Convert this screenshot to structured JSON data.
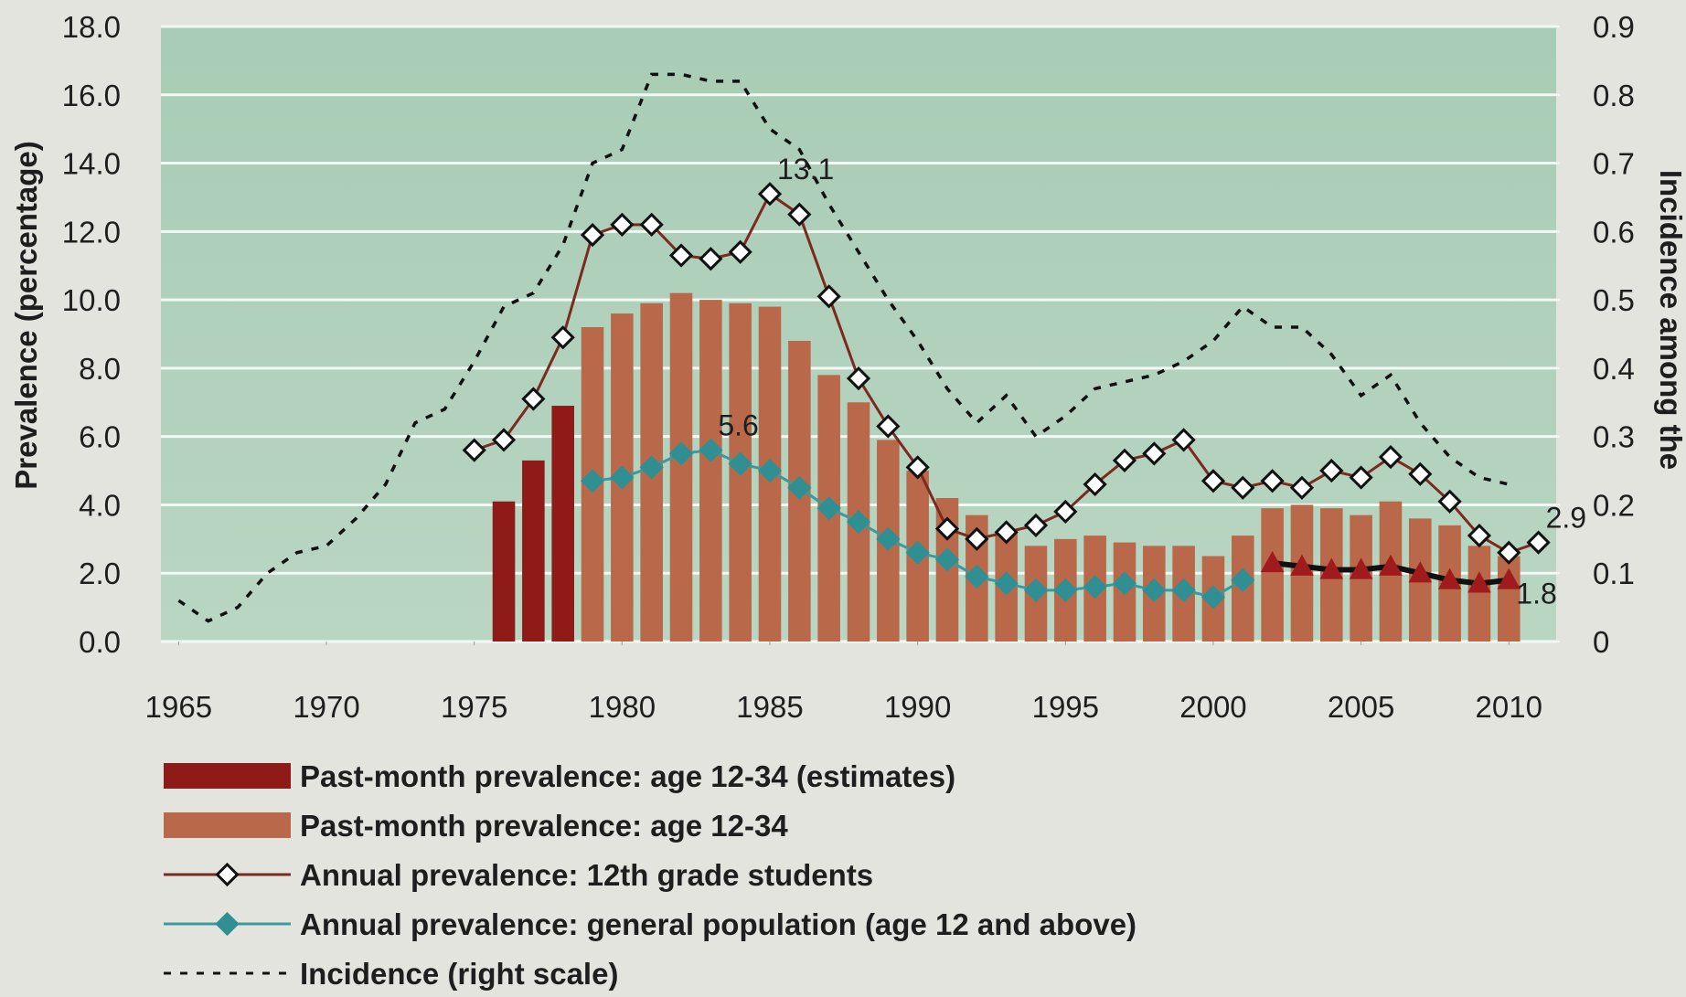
{
  "chart_data": {
    "type": "combo",
    "y_label": "Prevalence (percentage)",
    "y2_label": "Incidence among the",
    "xlim": [
      1964.4,
      2011.6
    ],
    "xticks": [
      1965,
      1970,
      1975,
      1980,
      1985,
      1990,
      1995,
      2000,
      2005,
      2010
    ],
    "ylim": [
      0,
      18
    ],
    "yticks": [
      {
        "value": 0,
        "label": "0.0"
      },
      {
        "value": 2,
        "label": "2.0"
      },
      {
        "value": 4,
        "label": "4.0"
      },
      {
        "value": 6,
        "label": "6.0"
      },
      {
        "value": 8,
        "label": "8.0"
      },
      {
        "value": 10,
        "label": "10.0"
      },
      {
        "value": 12,
        "label": "12.0"
      },
      {
        "value": 14,
        "label": "14.0"
      },
      {
        "value": 16,
        "label": "16.0"
      },
      {
        "value": 18,
        "label": "18.0"
      }
    ],
    "y2lim": [
      0,
      0.9
    ],
    "y2ticks": [
      0,
      0.1,
      0.2,
      0.3,
      0.4,
      0.5,
      0.6,
      0.7,
      0.8,
      0.9
    ],
    "grid": true,
    "series": [
      {
        "name": "Past-month prevalence: age 12-34 (estimates)",
        "type": "bar",
        "color": "#8e1b17",
        "x": [
          1976,
          1977,
          1978
        ],
        "values": [
          4.1,
          5.3,
          6.9
        ]
      },
      {
        "name": "Past-month prevalence: age 12-34",
        "type": "bar",
        "color": "#b9694a",
        "x": [
          1979,
          1980,
          1981,
          1982,
          1983,
          1984,
          1985,
          1986,
          1987,
          1988,
          1989,
          1990,
          1991,
          1992,
          1993,
          1994,
          1995,
          1996,
          1997,
          1998,
          1999,
          2000,
          2001,
          2002,
          2003,
          2004,
          2005,
          2006,
          2007,
          2008,
          2009,
          2010
        ],
        "values": [
          9.2,
          9.6,
          9.9,
          10.2,
          10.0,
          9.9,
          9.8,
          8.8,
          7.8,
          7.0,
          5.9,
          5.0,
          4.2,
          3.7,
          3.2,
          2.8,
          3.0,
          3.1,
          2.9,
          2.8,
          2.8,
          2.5,
          3.1,
          3.9,
          4.0,
          3.9,
          3.7,
          4.1,
          3.6,
          3.4,
          2.8,
          2.5
        ]
      },
      {
        "name": "Annual prevalence: 12th grade students",
        "type": "line",
        "color": "#7a2a1e",
        "marker": "diamond",
        "marker_fill": "#ffffff",
        "marker_stroke": "#111111",
        "x": [
          1975,
          1976,
          1977,
          1978,
          1979,
          1980,
          1981,
          1982,
          1983,
          1984,
          1985,
          1986,
          1987,
          1988,
          1989,
          1990,
          1991,
          1992,
          1993,
          1994,
          1995,
          1996,
          1997,
          1998,
          1999,
          2000,
          2001,
          2002,
          2003,
          2004,
          2005,
          2006,
          2007,
          2008,
          2009,
          2010,
          2011
        ],
        "values": [
          5.6,
          5.9,
          7.1,
          8.9,
          11.9,
          12.2,
          12.2,
          11.3,
          11.2,
          11.4,
          13.1,
          12.5,
          10.1,
          7.7,
          6.3,
          5.1,
          3.3,
          3.0,
          3.2,
          3.4,
          3.8,
          4.6,
          5.3,
          5.5,
          5.9,
          4.7,
          4.5,
          4.7,
          4.5,
          5.0,
          4.8,
          5.4,
          4.9,
          4.1,
          3.1,
          2.6,
          2.9
        ],
        "label_points": [
          10,
          36
        ]
      },
      {
        "name": "Annual prevalence: general population (age 12 and above)",
        "type": "line",
        "color": "#3a9a9c",
        "marker": "diamond",
        "marker_fill": "#2f8f92",
        "marker_stroke": "#2f8f92",
        "x": [
          1979,
          1980,
          1981,
          1982,
          1983,
          1984,
          1985,
          1986,
          1987,
          1988,
          1989,
          1990,
          1991,
          1992,
          1993,
          1994,
          1995,
          1996,
          1997,
          1998,
          1999,
          2000,
          2001
        ],
        "values": [
          4.7,
          4.8,
          5.1,
          5.5,
          5.6,
          5.2,
          5.0,
          4.5,
          3.9,
          3.5,
          3.0,
          2.6,
          2.4,
          1.9,
          1.7,
          1.5,
          1.5,
          1.6,
          1.7,
          1.5,
          1.5,
          1.3,
          1.8
        ],
        "label_points": [
          4
        ]
      },
      {
        "type": "line",
        "color": "#111111",
        "marker": "triangle",
        "marker_fill": "#a01c1c",
        "marker_stroke": "#a01c1c",
        "x": [
          2002,
          2003,
          2004,
          2005,
          2006,
          2007,
          2008,
          2009,
          2010
        ],
        "values": [
          2.3,
          2.2,
          2.1,
          2.1,
          2.2,
          2.0,
          1.8,
          1.7,
          1.8
        ],
        "label_points": [
          8
        ]
      },
      {
        "name": "Incidence (right scale)",
        "type": "line",
        "color": "#111111",
        "dash": true,
        "axis": "y2",
        "x": [
          1965,
          1966,
          1967,
          1968,
          1969,
          1970,
          1971,
          1972,
          1973,
          1974,
          1975,
          1976,
          1977,
          1978,
          1979,
          1980,
          1981,
          1982,
          1983,
          1984,
          1985,
          1986,
          1987,
          1988,
          1989,
          1990,
          1991,
          1992,
          1993,
          1994,
          1995,
          1996,
          1997,
          1998,
          1999,
          2000,
          2001,
          2002,
          2003,
          2004,
          2005,
          2006,
          2007,
          2008,
          2009,
          2010
        ],
        "values": [
          0.06,
          0.03,
          0.05,
          0.1,
          0.13,
          0.14,
          0.18,
          0.23,
          0.32,
          0.34,
          0.41,
          0.49,
          0.51,
          0.58,
          0.7,
          0.72,
          0.83,
          0.83,
          0.82,
          0.82,
          0.75,
          0.72,
          0.64,
          0.57,
          0.5,
          0.44,
          0.37,
          0.32,
          0.36,
          0.3,
          0.33,
          0.37,
          0.38,
          0.39,
          0.41,
          0.44,
          0.49,
          0.46,
          0.46,
          0.42,
          0.36,
          0.39,
          0.32,
          0.27,
          0.24,
          0.23
        ]
      }
    ]
  }
}
